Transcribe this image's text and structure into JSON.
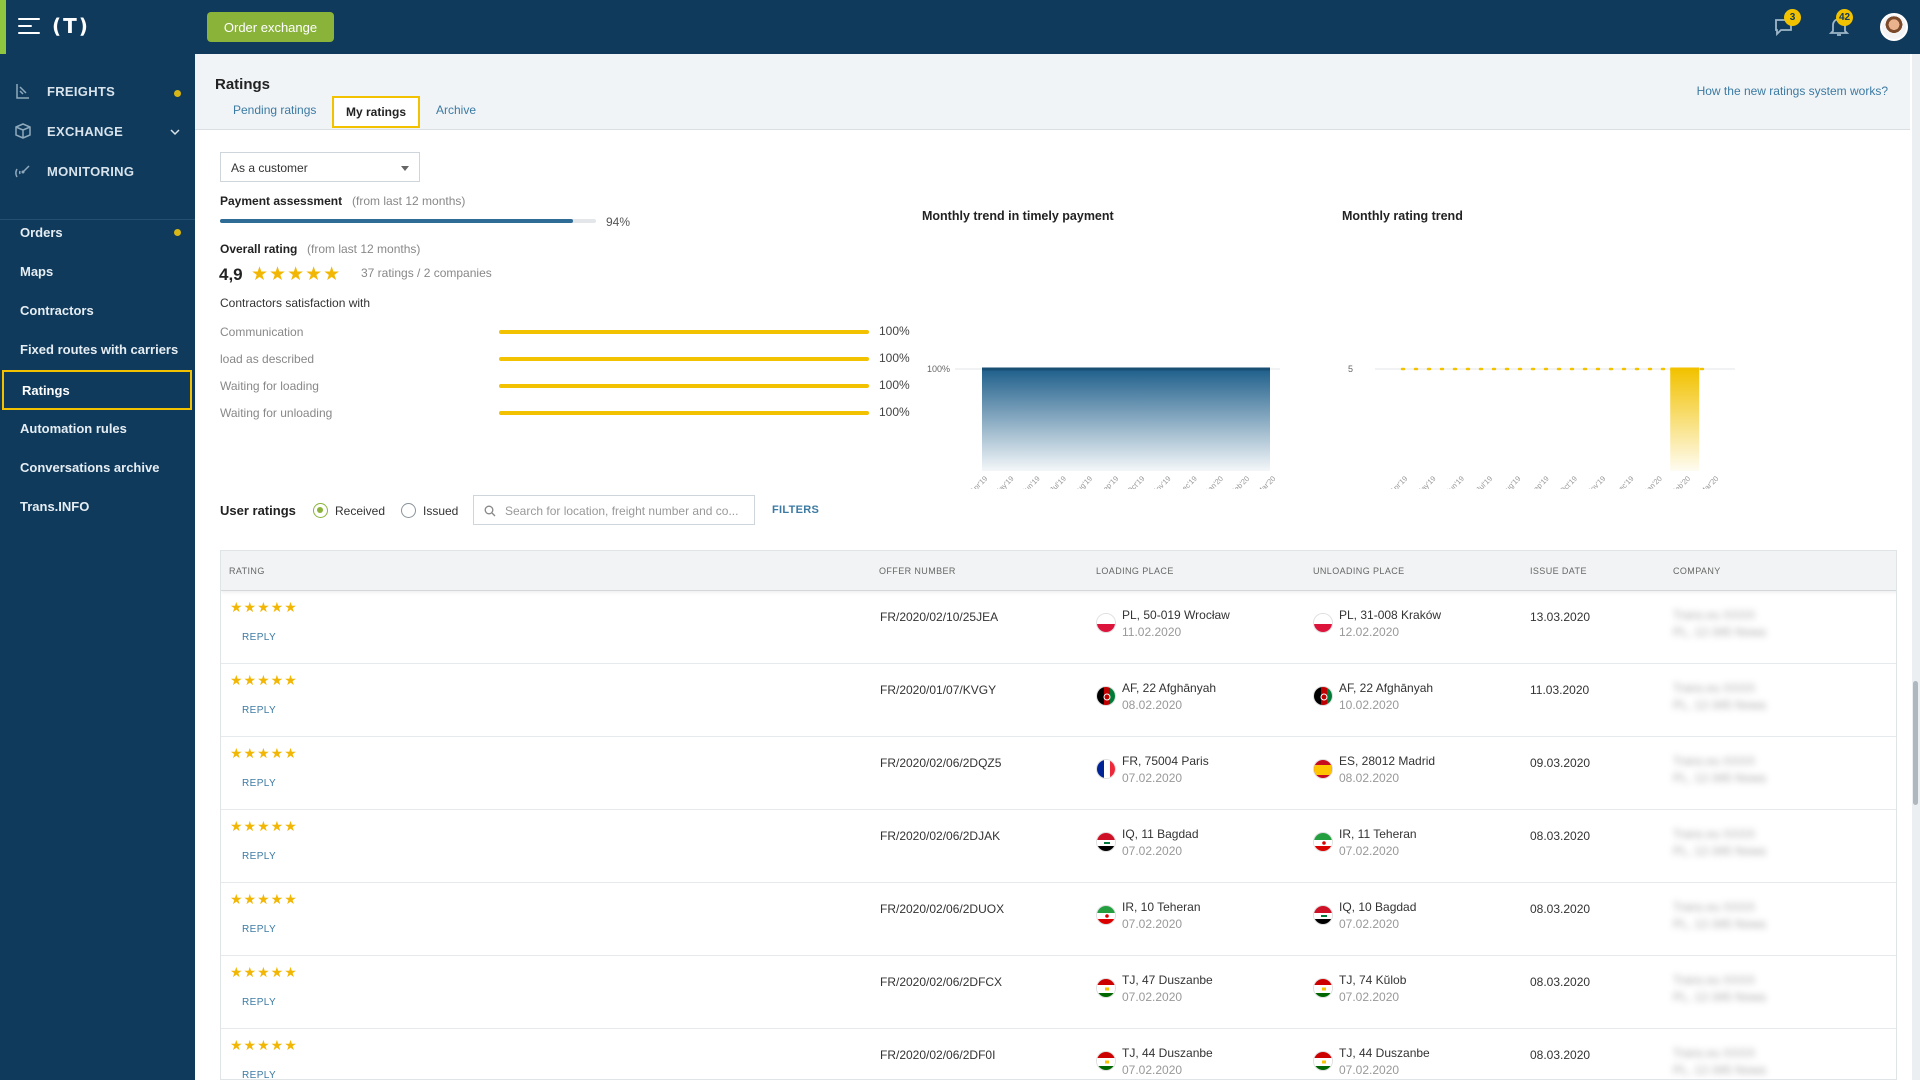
{
  "topbar": {
    "logo": "(T)",
    "order_button": "Order exchange",
    "messages_count": "3",
    "notifications_count": "42"
  },
  "sidebar": {
    "main": [
      {
        "label": "FREIGHTS",
        "icon": "freights-icon",
        "dot": true
      },
      {
        "label": "EXCHANGE",
        "icon": "exchange-icon",
        "dot": false
      },
      {
        "label": "MONITORING",
        "icon": "monitoring-icon",
        "dot": false
      }
    ],
    "sub": [
      {
        "label": "Orders",
        "dot": true
      },
      {
        "label": "Maps"
      },
      {
        "label": "Contractors"
      },
      {
        "label": "Fixed routes with carriers"
      },
      {
        "label": "Ratings",
        "active": true
      },
      {
        "label": "Automation rules"
      },
      {
        "label": "Conversations archive"
      },
      {
        "label": "Trans.INFO"
      }
    ]
  },
  "header": {
    "title": "Ratings",
    "tabs": [
      "Pending ratings",
      "My ratings",
      "Archive"
    ],
    "active_tab": "My ratings",
    "help_link": "How the new ratings system works?"
  },
  "summary": {
    "role_select": "As a customer",
    "payment_label": "Payment assessment",
    "payment_period": "(from last 12 months)",
    "payment_percent": "94%",
    "payment_value": 0.94,
    "overall_label": "Overall rating",
    "overall_period": "(from last 12 months)",
    "overall_value": "4,9",
    "overall_count": "37 ratings / 2 companies",
    "satisfaction_label": "Contractors satisfaction with",
    "satisfaction": [
      {
        "label": "Communication",
        "value": "100%"
      },
      {
        "label": "load as described",
        "value": "100%"
      },
      {
        "label": "Waiting for loading",
        "value": "100%"
      },
      {
        "label": "Waiting for unloading",
        "value": "100%"
      }
    ]
  },
  "chart_data": [
    {
      "type": "area",
      "title": "Monthly trend in timely payment",
      "categories": [
        "Apr'19",
        "May'19",
        "Jun'19",
        "Jul'19",
        "Aug'19",
        "Sep'19",
        "Oct'19",
        "Nov'19",
        "Dec'19",
        "Jan'20",
        "Feb'20",
        "Mar'20"
      ],
      "y_tick": "100%",
      "values": [
        100,
        100,
        100,
        100,
        100,
        100,
        100,
        100,
        100,
        100,
        100,
        100
      ],
      "ylim": [
        0,
        100
      ],
      "color": "#1f5f8b"
    },
    {
      "type": "bar",
      "title": "Monthly rating trend",
      "categories": [
        "Apr'19",
        "May'19",
        "Jun'19",
        "Jul'19",
        "Aug'19",
        "Sep'19",
        "Oct'19",
        "Nov'19",
        "Dec'19",
        "Jan'20",
        "Feb'20",
        "Mar'20"
      ],
      "y_tick": "5",
      "values": [
        null,
        null,
        null,
        null,
        null,
        null,
        null,
        null,
        null,
        null,
        5,
        null
      ],
      "reference": 5,
      "ylim": [
        0,
        5
      ],
      "color": "#f2c200"
    }
  ],
  "ratings": {
    "label": "User ratings",
    "received": "Received",
    "issued": "Issued",
    "search_placeholder": "Search for location, freight number and co...",
    "filters": "FILTERS",
    "columns": [
      "RATING",
      "OFFER NUMBER",
      "LOADING PLACE",
      "UNLOADING PLACE",
      "ISSUE DATE",
      "COMPANY"
    ],
    "reply_label": "REPLY",
    "stars": "★★★★★",
    "rows": [
      {
        "offer": "FR/2020/02/10/25JEA",
        "load_flag": "pl",
        "load": "PL, 50-019 Wrocław",
        "load_date": "11.02.2020",
        "unload_flag": "pl",
        "unload": "PL, 31-008 Kraków",
        "unload_date": "12.02.2020",
        "issue": "13.03.2020",
        "company": "Trans.eu XXXX",
        "company2": "PL, 12-345 Nowa"
      },
      {
        "offer": "FR/2020/01/07/KVGY",
        "load_flag": "af",
        "load": "AF, 22 Afghānyah",
        "load_date": "08.02.2020",
        "unload_flag": "af",
        "unload": "AF, 22 Afghānyah",
        "unload_date": "10.02.2020",
        "issue": "11.03.2020",
        "company": "Trans.eu XXXX",
        "company2": "PL, 12-345 Nowa"
      },
      {
        "offer": "FR/2020/02/06/2DQZ5",
        "load_flag": "fr",
        "load": "FR, 75004 Paris",
        "load_date": "07.02.2020",
        "unload_flag": "es",
        "unload": "ES, 28012 Madrid",
        "unload_date": "08.02.2020",
        "issue": "09.03.2020",
        "company": "Trans.eu XXXX",
        "company2": "PL, 12-345 Nowa"
      },
      {
        "offer": "FR/2020/02/06/2DJAK",
        "load_flag": "iq",
        "load": "IQ, 11 Bagdad",
        "load_date": "07.02.2020",
        "unload_flag": "ir",
        "unload": "IR, 11 Teheran",
        "unload_date": "07.02.2020",
        "issue": "08.03.2020",
        "company": "Trans.eu XXXX",
        "company2": "PL, 12-345 Nowa"
      },
      {
        "offer": "FR/2020/02/06/2DUOX",
        "load_flag": "ir",
        "load": "IR, 10 Teheran",
        "load_date": "07.02.2020",
        "unload_flag": "iq",
        "unload": "IQ, 10 Bagdad",
        "unload_date": "07.02.2020",
        "issue": "08.03.2020",
        "company": "Trans.eu XXXX",
        "company2": "PL, 12-345 Nowa"
      },
      {
        "offer": "FR/2020/02/06/2DFCX",
        "load_flag": "tj",
        "load": "TJ, 47 Duszanbe",
        "load_date": "07.02.2020",
        "unload_flag": "tj",
        "unload": "TJ, 74 Kŭlob",
        "unload_date": "07.02.2020",
        "issue": "08.03.2020",
        "company": "Trans.eu XXXX",
        "company2": "PL, 12-345 Nowa"
      },
      {
        "offer": "FR/2020/02/06/2DF0I",
        "load_flag": "tj",
        "load": "TJ, 44 Duszanbe",
        "load_date": "07.02.2020",
        "unload_flag": "tj",
        "unload": "TJ, 44 Duszanbe",
        "unload_date": "07.02.2020",
        "issue": "08.03.2020",
        "company": "Trans.eu XXXX",
        "company2": "PL, 12-345 Nowa"
      }
    ]
  },
  "colors": {
    "navy": "#0f3a5b",
    "accent_yellow": "#f2c200",
    "green": "#8ab33a",
    "link": "#3b7aa3"
  }
}
